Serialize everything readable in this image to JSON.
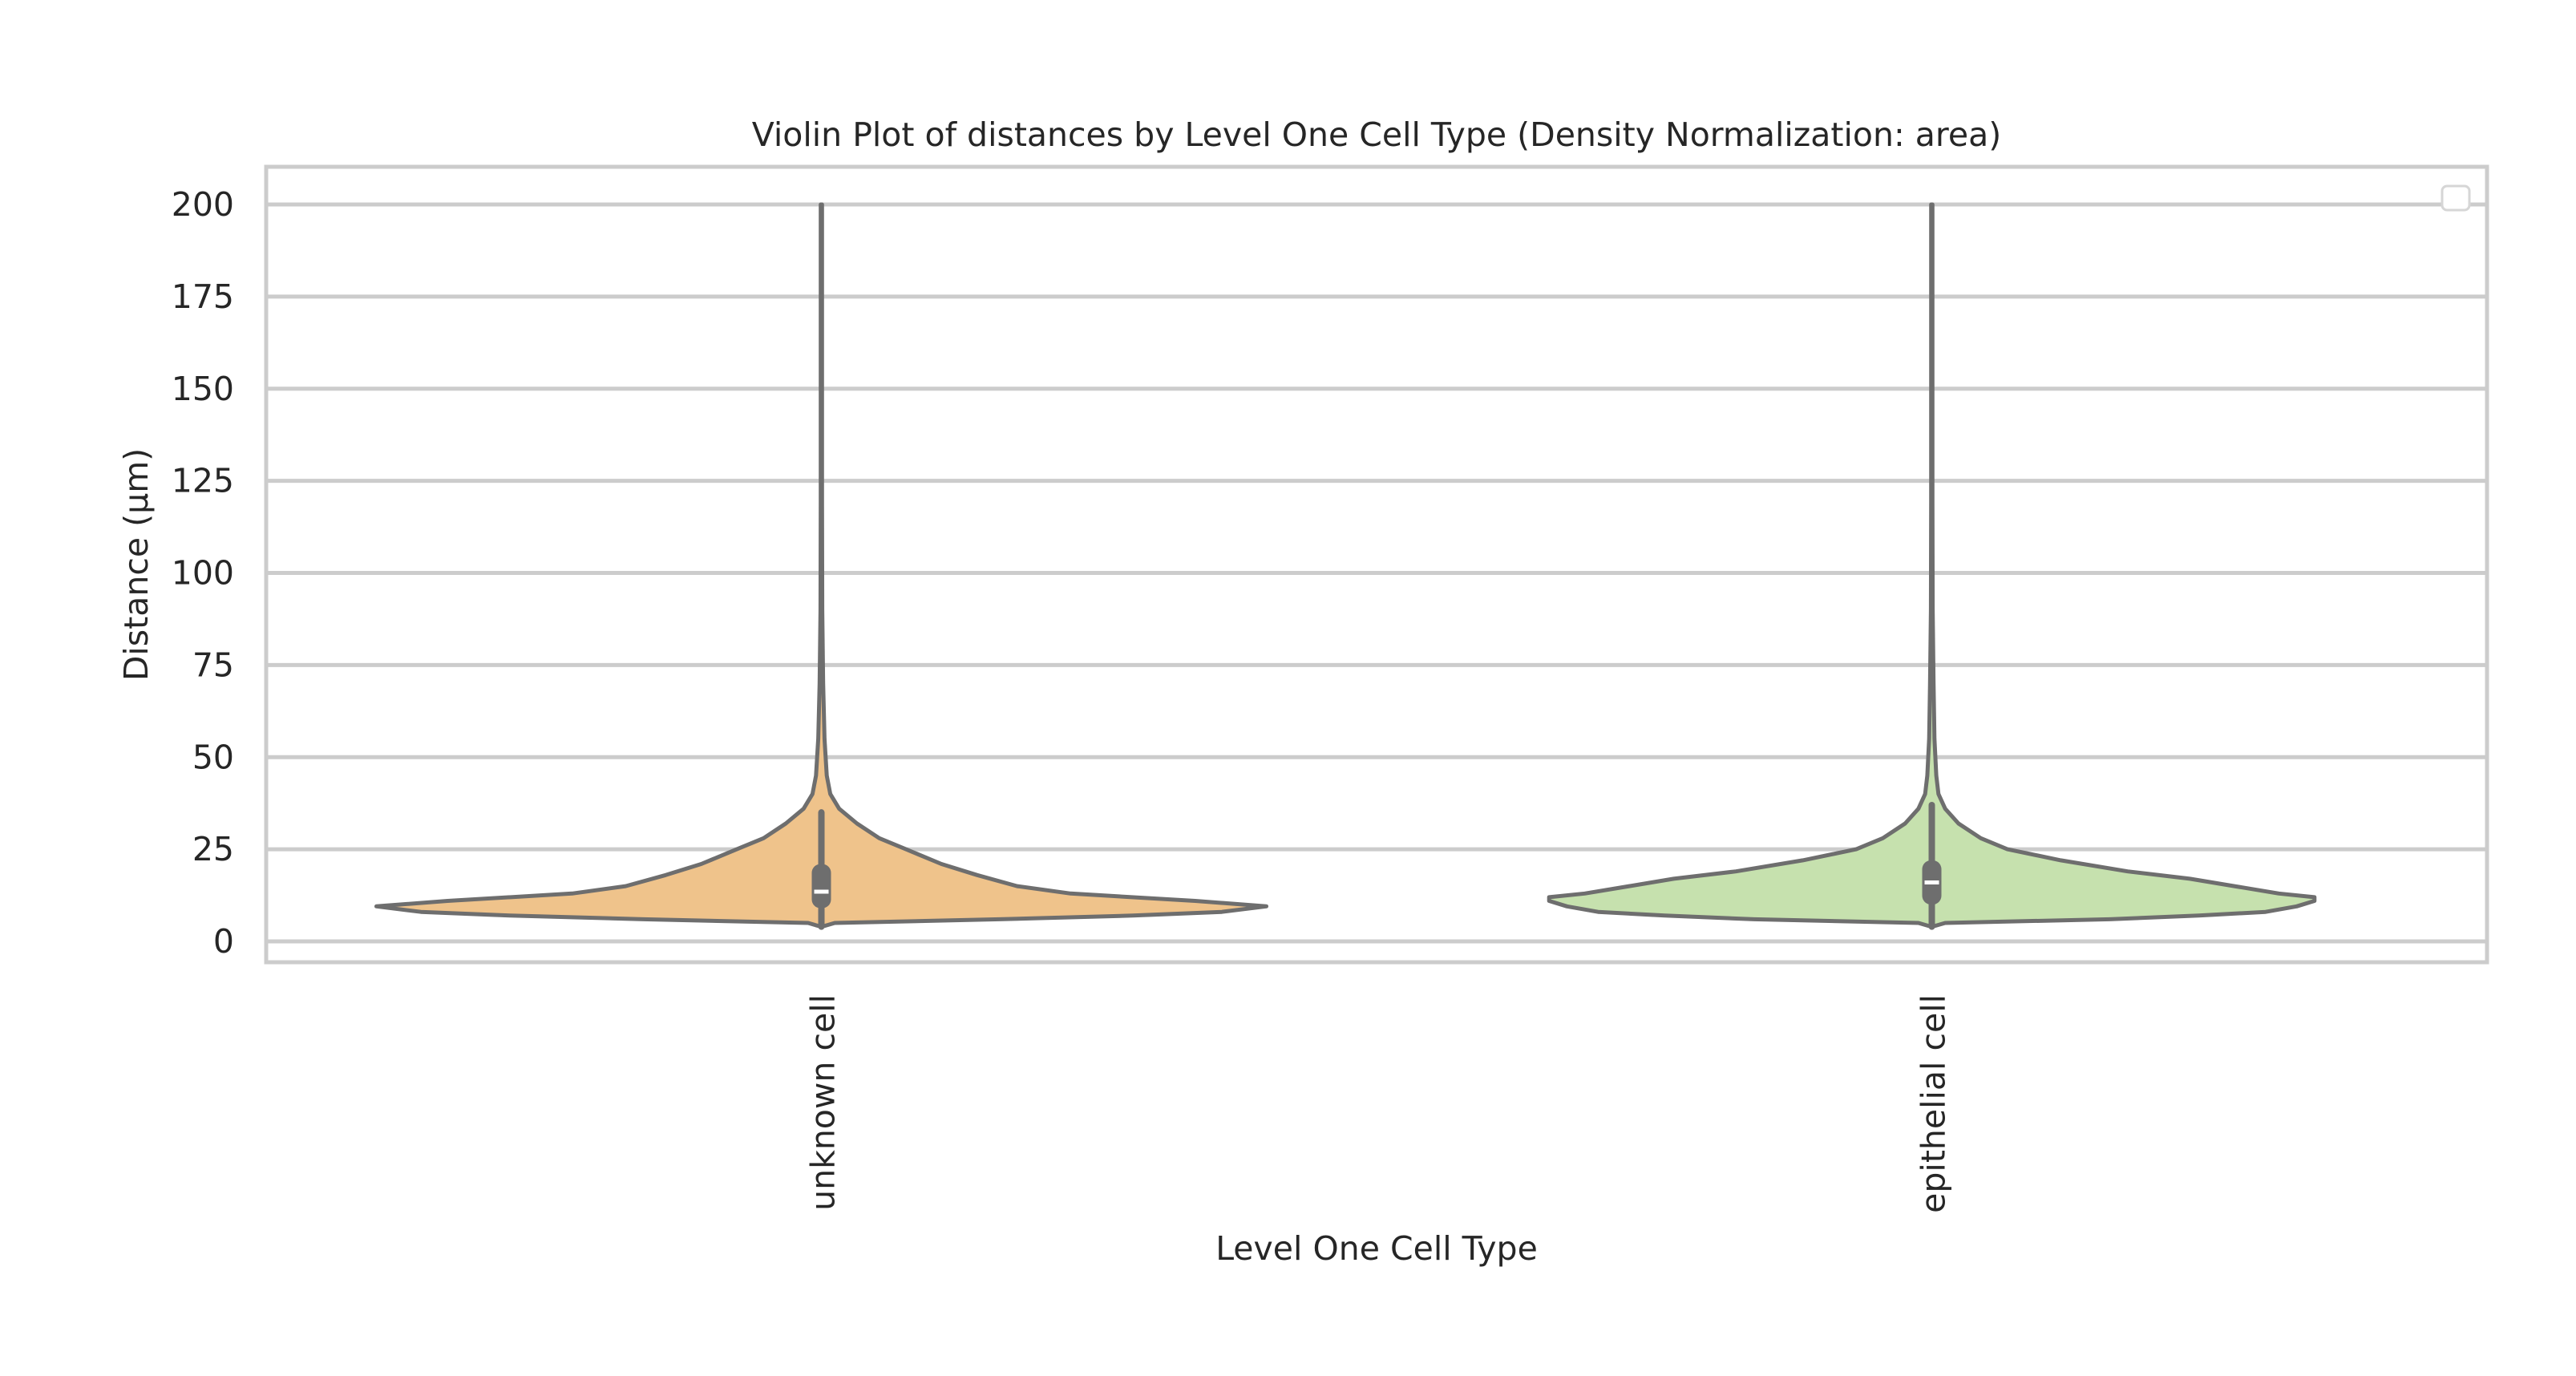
{
  "chart_data": {
    "type": "violin",
    "title": "Violin Plot of distances by Level One Cell Type (Density Normalization: area)",
    "xlabel": "Level One Cell Type",
    "ylabel": "Distance (µm)",
    "ylim": [
      -6,
      210
    ],
    "yticks": [
      0,
      25,
      50,
      75,
      100,
      125,
      150,
      175,
      200
    ],
    "grid": true,
    "legend": "top-right (empty)",
    "categories": [
      "unknown cell",
      "epithelial cell"
    ],
    "colors": {
      "unknown cell": "#efc38b",
      "epithelial cell": "#c6e1ae",
      "outline": "#6e6e6e",
      "grid": "#cccccc",
      "box": "#6e6e6e",
      "median": "#ffffff"
    },
    "violins": [
      {
        "category": "unknown cell",
        "min": 4,
        "max": 200,
        "q1": 9,
        "median": 13.5,
        "q3": 21,
        "whisker_low": 4,
        "whisker_high": 35,
        "profile": [
          [
            4,
            0.0
          ],
          [
            5,
            0.03
          ],
          [
            6,
            0.4
          ],
          [
            7,
            0.7
          ],
          [
            8,
            0.9
          ],
          [
            9.5,
            1.0
          ],
          [
            11,
            0.84
          ],
          [
            13,
            0.56
          ],
          [
            15,
            0.44
          ],
          [
            18,
            0.35
          ],
          [
            21,
            0.27
          ],
          [
            25,
            0.19
          ],
          [
            28,
            0.13
          ],
          [
            32,
            0.08
          ],
          [
            36,
            0.04
          ],
          [
            40,
            0.02
          ],
          [
            45,
            0.012
          ],
          [
            55,
            0.007
          ],
          [
            70,
            0.004
          ],
          [
            90,
            0.002
          ],
          [
            120,
            0.0015
          ],
          [
            160,
            0.0012
          ],
          [
            200,
            0.001
          ]
        ]
      },
      {
        "category": "epithelial cell",
        "min": 4,
        "max": 200,
        "q1": 10,
        "median": 16,
        "q3": 22,
        "whisker_low": 4,
        "whisker_high": 37,
        "profile": [
          [
            4,
            0.0
          ],
          [
            5,
            0.03
          ],
          [
            6,
            0.4
          ],
          [
            7,
            0.6
          ],
          [
            8,
            0.75
          ],
          [
            9.5,
            0.82
          ],
          [
            11,
            0.86
          ],
          [
            12,
            0.86
          ],
          [
            13,
            0.78
          ],
          [
            15,
            0.68
          ],
          [
            17,
            0.58
          ],
          [
            19,
            0.44
          ],
          [
            22,
            0.29
          ],
          [
            25,
            0.17
          ],
          [
            28,
            0.11
          ],
          [
            32,
            0.06
          ],
          [
            36,
            0.03
          ],
          [
            40,
            0.015
          ],
          [
            45,
            0.01
          ],
          [
            55,
            0.006
          ],
          [
            70,
            0.004
          ],
          [
            90,
            0.002
          ],
          [
            120,
            0.0015
          ],
          [
            160,
            0.0012
          ],
          [
            200,
            0.001
          ]
        ]
      }
    ]
  }
}
